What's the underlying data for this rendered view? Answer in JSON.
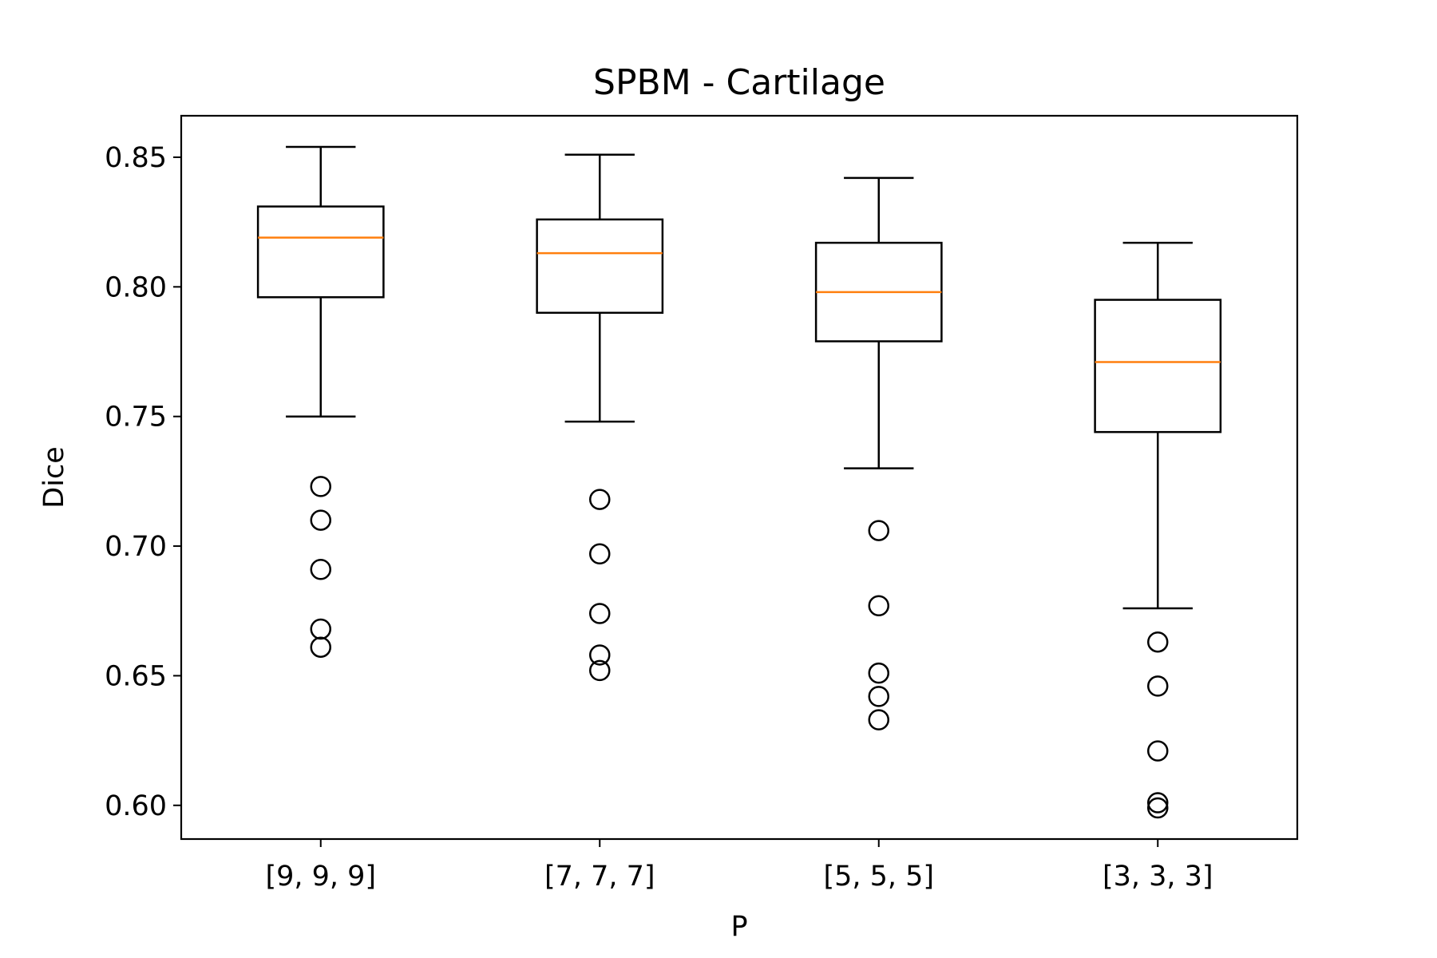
{
  "chart_data": {
    "type": "box",
    "title": "SPBM - Cartilage",
    "xlabel": "P",
    "ylabel": "Dice",
    "categories": [
      "[9, 9, 9]",
      "[7, 7, 7]",
      "[5, 5, 5]",
      "[3, 3, 3]"
    ],
    "ylim": [
      0.587,
      0.866
    ],
    "yticks": [
      0.6,
      0.65,
      0.7,
      0.75,
      0.8,
      0.85
    ],
    "ytick_labels": [
      "0.60",
      "0.65",
      "0.70",
      "0.75",
      "0.80",
      "0.85"
    ],
    "grid": false,
    "colors": {
      "box": "#000000",
      "median": "#ff7f0e",
      "flier": "#000000"
    },
    "boxes": [
      {
        "category": "[9, 9, 9]",
        "whisker_low": 0.75,
        "q1": 0.796,
        "median": 0.819,
        "q3": 0.831,
        "whisker_high": 0.854,
        "fliers": [
          0.723,
          0.71,
          0.691,
          0.668,
          0.661
        ]
      },
      {
        "category": "[7, 7, 7]",
        "whisker_low": 0.748,
        "q1": 0.79,
        "median": 0.813,
        "q3": 0.826,
        "whisker_high": 0.851,
        "fliers": [
          0.718,
          0.697,
          0.674,
          0.658,
          0.652
        ]
      },
      {
        "category": "[5, 5, 5]",
        "whisker_low": 0.73,
        "q1": 0.779,
        "median": 0.798,
        "q3": 0.817,
        "whisker_high": 0.842,
        "fliers": [
          0.706,
          0.677,
          0.651,
          0.642,
          0.633
        ]
      },
      {
        "category": "[3, 3, 3]",
        "whisker_low": 0.676,
        "q1": 0.744,
        "median": 0.771,
        "q3": 0.795,
        "whisker_high": 0.817,
        "fliers": [
          0.663,
          0.646,
          0.621,
          0.601,
          0.599
        ]
      }
    ]
  }
}
